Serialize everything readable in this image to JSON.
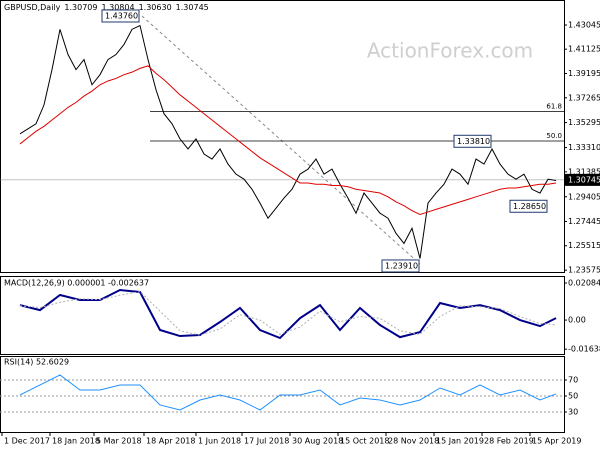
{
  "chart_data": [
    {
      "type": "line",
      "title": [
        "GBPUSD,Daily",
        "1.30709",
        "1.30804",
        "1.30630",
        "1.30745"
      ],
      "watermark": "ActionForex.com",
      "x": [
        0,
        1,
        2,
        3,
        4,
        5,
        6,
        7,
        8,
        9,
        10,
        11,
        12,
        13,
        14,
        15,
        16,
        17,
        18,
        19,
        20,
        21,
        22,
        23,
        24,
        25,
        26,
        27,
        28,
        29,
        30,
        31,
        32,
        33,
        34,
        35,
        36,
        37,
        38,
        39,
        40,
        41,
        42,
        43,
        44,
        45,
        46,
        47,
        48,
        49,
        50,
        51,
        52,
        53,
        54,
        55,
        56,
        57,
        58,
        59,
        60,
        61,
        62,
        63,
        64,
        65,
        66,
        67
      ],
      "series": [
        {
          "color": "#000000",
          "values": [
            1.344,
            1.348,
            1.352,
            1.367,
            1.395,
            1.427,
            1.407,
            1.395,
            1.403,
            1.383,
            1.391,
            1.403,
            1.407,
            1.415,
            1.427,
            1.43,
            1.403,
            1.379,
            1.36,
            1.352,
            1.34,
            1.332,
            1.34,
            1.328,
            1.324,
            1.332,
            1.32,
            1.312,
            1.308,
            1.3,
            1.289,
            1.277,
            1.285,
            1.293,
            1.3,
            1.312,
            1.316,
            1.324,
            1.312,
            1.316,
            1.304,
            1.293,
            1.281,
            1.297,
            1.289,
            1.281,
            1.277,
            1.265,
            1.257,
            1.269,
            1.245,
            1.289,
            1.297,
            1.304,
            1.316,
            1.312,
            1.304,
            1.324,
            1.32,
            1.332,
            1.32,
            1.312,
            1.308,
            1.312,
            1.3,
            1.297,
            1.308,
            1.307
          ]
        },
        {
          "color": "#e00000",
          "values": [
            1.336,
            1.341,
            1.346,
            1.35,
            1.355,
            1.36,
            1.365,
            1.369,
            1.374,
            1.378,
            1.383,
            1.386,
            1.388,
            1.391,
            1.393,
            1.396,
            1.398,
            1.392,
            1.387,
            1.381,
            1.375,
            1.37,
            1.365,
            1.36,
            1.355,
            1.35,
            1.345,
            1.34,
            1.335,
            1.33,
            1.325,
            1.321,
            1.317,
            1.313,
            1.309,
            1.305,
            1.305,
            1.304,
            1.304,
            1.303,
            1.303,
            1.302,
            1.3,
            1.299,
            1.298,
            1.297,
            1.294,
            1.29,
            1.287,
            1.283,
            1.28,
            1.282,
            1.284,
            1.286,
            1.288,
            1.29,
            1.292,
            1.294,
            1.296,
            1.298,
            1.3,
            1.301,
            1.301,
            1.302,
            1.303,
            1.304,
            1.304,
            1.305
          ]
        }
      ],
      "annotations": [
        {
          "x": 15,
          "value": 1.4376,
          "label": "1.43760"
        },
        {
          "x": 59,
          "value": 1.3381,
          "label": "1.33810"
        },
        {
          "x": 66,
          "value": 1.2865,
          "label": "1.28650"
        },
        {
          "x": 50,
          "value": 1.2391,
          "label": "1.23910"
        }
      ],
      "hlines": [
        {
          "value": 1.36177,
          "label": "61.8"
        },
        {
          "value": 1.33835,
          "label": "50.0"
        }
      ],
      "last_price": 1.30745,
      "xlim": [
        -2.5,
        68
      ],
      "ylim": [
        1.2343,
        1.4503
      ],
      "yticks": [
        1.43045,
        1.41125,
        1.39195,
        1.37265,
        1.35295,
        {
          "value": 1.3331,
          "label": "1.33310"
        },
        1.31385,
        1.29405,
        1.27445,
        1.25515,
        1.23575
      ]
    },
    {
      "type": "line",
      "title": "MACD(12,26,9) 0.000001 -0.002637",
      "x": [
        0,
        2.5,
        5,
        7.5,
        10,
        12.5,
        15,
        17.5,
        20,
        22.5,
        25,
        27.5,
        30,
        32.5,
        35,
        37.5,
        40,
        42.5,
        45,
        47.5,
        50,
        52.5,
        55,
        57.5,
        60,
        62.5,
        65,
        67
      ],
      "series": [
        {
          "color": "#00008b",
          "width": 2,
          "values": [
            0.0084,
            0.0056,
            0.0141,
            0.0113,
            0.0113,
            0.0169,
            0.0158,
            -0.0056,
            -0.009,
            -0.0084,
            -0.0011,
            0.0068,
            -0.0056,
            -0.0101,
            0.0011,
            0.0084,
            -0.0056,
            0.0068,
            -0.0028,
            -0.0096,
            -0.0068,
            0.0096,
            0.0068,
            0.0084,
            0.0056,
            0,
            -0.0034,
            0.0011
          ]
        },
        {
          "color": "#b0b0b0",
          "width": 1,
          "dash": true,
          "values": [
            0.008,
            0.007,
            0.01,
            0.012,
            0.0115,
            0.014,
            0.016,
            0.005,
            -0.006,
            -0.0085,
            -0.005,
            0.003,
            0,
            -0.008,
            -0.004,
            0.005,
            -0.001,
            0.002,
            0.001,
            -0.006,
            -0.008,
            0.002,
            0.008,
            0.0075,
            0.0065,
            0.002,
            -0.002,
            -0.0026
          ]
        }
      ],
      "xlim": [
        -2.5,
        68
      ],
      "ylim": [
        -0.0191,
        0.0248
      ],
      "yticks": [
        0.020848,
        {
          "value": 0,
          "label": "0.00"
        },
        -0.016389
      ]
    },
    {
      "type": "line",
      "title": "RSI(14) 52.6029",
      "x": [
        0,
        2.5,
        5,
        7.5,
        10,
        12.5,
        15,
        17.5,
        20,
        22.5,
        25,
        27.5,
        30,
        32.5,
        35,
        37.5,
        40,
        42.5,
        45,
        47.5,
        50,
        52.5,
        55,
        57.5,
        60,
        62.5,
        65,
        67
      ],
      "series": [
        {
          "color": "#1e90ff",
          "width": 1,
          "values": [
            51.3,
            63.8,
            76.3,
            57.5,
            57.5,
            63.8,
            63.8,
            38.8,
            32.5,
            45,
            51.3,
            45,
            32.5,
            51.3,
            51.3,
            57.5,
            38.8,
            47.5,
            45,
            38.8,
            45,
            60,
            51.3,
            63.8,
            51.3,
            57.5,
            45,
            52.6
          ]
        }
      ],
      "xlim": [
        -2.5,
        68
      ],
      "ylim": [
        5,
        100
      ],
      "yticks": [
        70,
        50,
        30
      ],
      "xticks": [
        {
          "value": -2.25,
          "label": "1 Dec 2017"
        },
        {
          "value": 3.75,
          "label": "18 Jan 2018"
        },
        {
          "value": 9.25,
          "label": "5 Mar 2018"
        },
        {
          "value": 15.5,
          "label": "18 Apr 2018"
        },
        {
          "value": 22,
          "label": "1 Jun 2018"
        },
        {
          "value": 27.75,
          "label": "17 Jul 2018"
        },
        {
          "value": 33.75,
          "label": "30 Aug 2018"
        },
        {
          "value": 39.75,
          "label": "15 Oct 2018"
        },
        {
          "value": 45.75,
          "label": "28 Nov 2018"
        },
        {
          "value": 51.75,
          "label": "15 Jan 2019"
        },
        {
          "value": 57.75,
          "label": "28 Feb 2019"
        },
        {
          "value": 63.75,
          "label": "15 Apr 2019"
        }
      ]
    }
  ]
}
